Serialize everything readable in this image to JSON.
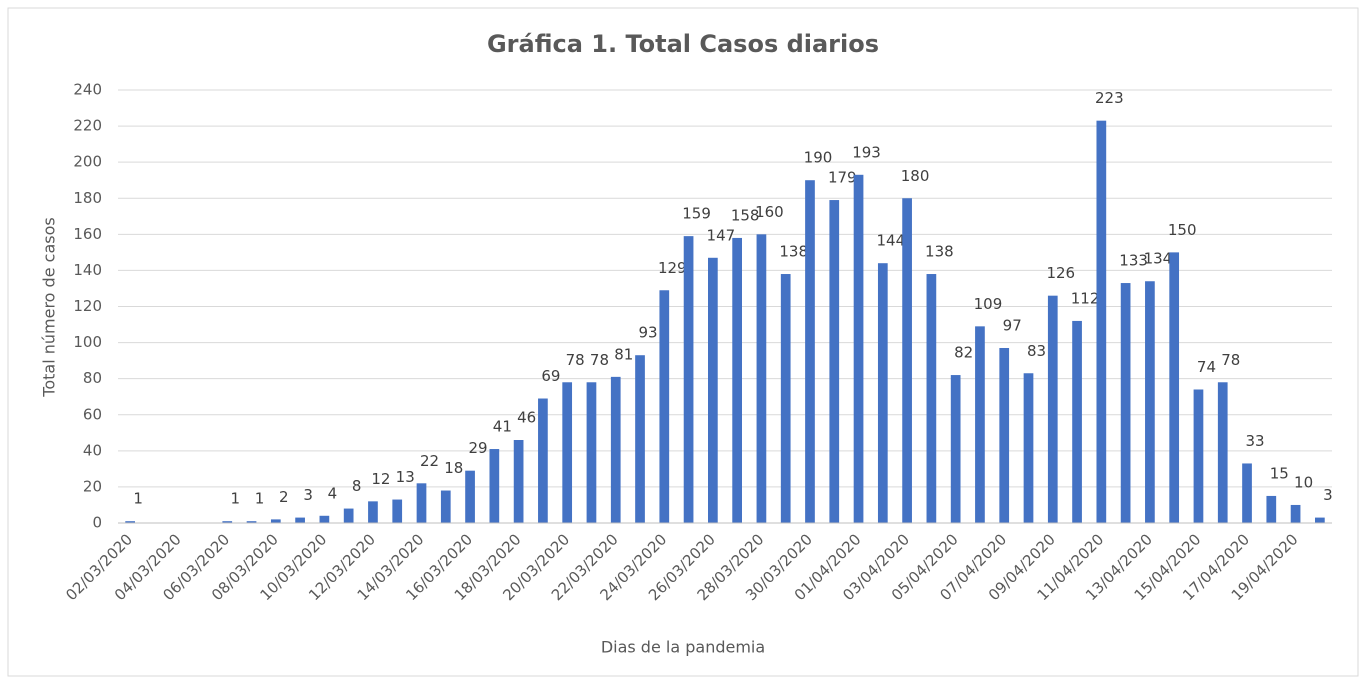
{
  "chart_data": {
    "type": "bar",
    "title": "Gráfica 1. Total Casos diarios",
    "x_label": "Dias de la pandemia",
    "y_label": "Total número de casos",
    "color": "#4472c4",
    "grid": true,
    "categories": [
      "02/03/2020",
      null,
      "04/03/2020",
      null,
      "06/03/2020",
      null,
      "08/03/2020",
      null,
      "10/03/2020",
      null,
      "12/03/2020",
      null,
      "14/03/2020",
      null,
      "16/03/2020",
      null,
      "18/03/2020",
      null,
      "20/03/2020",
      null,
      "22/03/2020",
      null,
      "24/03/2020",
      null,
      "26/03/2020",
      null,
      "28/03/2020",
      null,
      "30/03/2020",
      null,
      "01/04/2020",
      null,
      "03/04/2020",
      null,
      "05/04/2020",
      null,
      "07/04/2020",
      null,
      "09/04/2020",
      null,
      "11/04/2020",
      null,
      "13/04/2020",
      null,
      "15/04/2020",
      null,
      "17/04/2020",
      null,
      "19/04/2020",
      null
    ],
    "values": [
      1,
      null,
      null,
      null,
      1,
      1,
      2,
      3,
      4,
      8,
      12,
      13,
      22,
      18,
      29,
      41,
      46,
      69,
      78,
      78,
      81,
      93,
      129,
      159,
      147,
      158,
      160,
      138,
      190,
      179,
      193,
      144,
      180,
      138,
      82,
      109,
      97,
      83,
      126,
      112,
      223,
      133,
      134,
      150,
      74,
      78,
      33,
      15,
      10,
      3
    ],
    "ylim": [
      0,
      240
    ],
    "yticks": [
      0,
      20,
      40,
      60,
      80,
      100,
      120,
      140,
      160,
      180,
      200,
      220,
      240
    ]
  }
}
